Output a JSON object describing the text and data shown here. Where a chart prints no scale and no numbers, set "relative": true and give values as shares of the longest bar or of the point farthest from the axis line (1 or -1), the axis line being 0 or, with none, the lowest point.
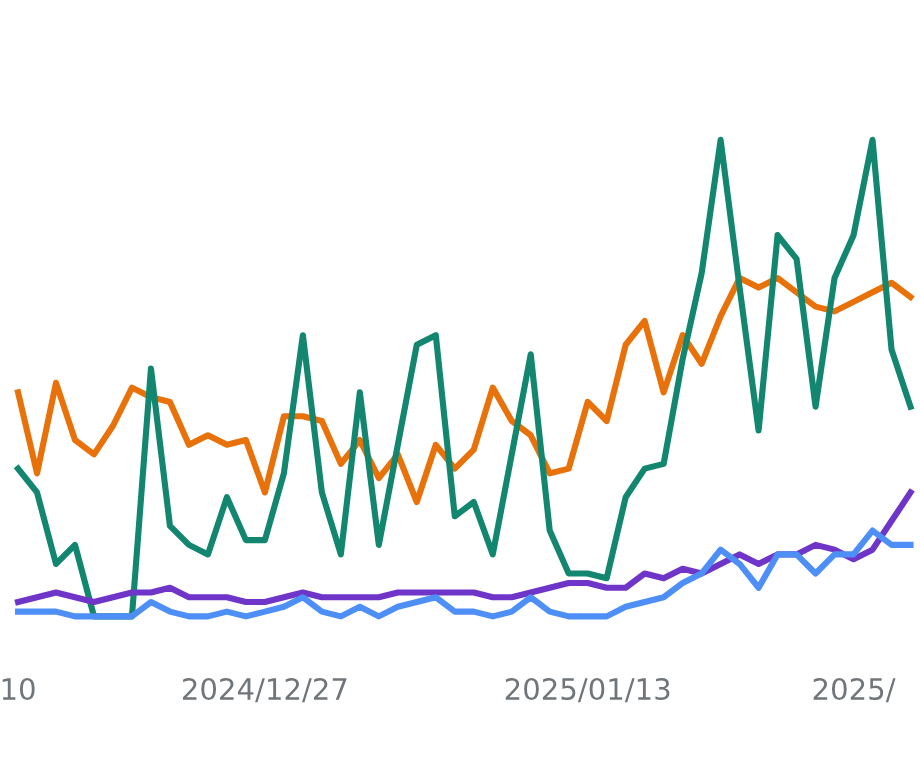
{
  "chart_data": {
    "type": "line",
    "relative": true,
    "grid": false,
    "legend": false,
    "marker": "none",
    "line_style": "solid",
    "categories": [
      "10",
      null,
      null,
      null,
      null,
      null,
      null,
      null,
      null,
      null,
      null,
      null,
      null,
      "2024/12/27",
      null,
      null,
      null,
      null,
      null,
      null,
      null,
      null,
      null,
      null,
      null,
      null,
      null,
      null,
      null,
      null,
      "2025/01/13",
      null,
      null,
      null,
      null,
      null,
      null,
      null,
      null,
      null,
      null,
      null,
      null,
      null,
      "2025/",
      null,
      null,
      null
    ],
    "series": [
      {
        "color": "#e8710a",
        "values": [
          0.47,
          0.3,
          0.49,
          0.37,
          0.34,
          0.4,
          0.48,
          0.46,
          0.45,
          0.36,
          0.38,
          0.36,
          0.37,
          0.26,
          0.42,
          0.42,
          0.41,
          0.32,
          0.37,
          0.29,
          0.34,
          0.24,
          0.36,
          0.31,
          0.35,
          0.48,
          0.41,
          0.38,
          0.3,
          0.31,
          0.45,
          0.41,
          0.57,
          0.62,
          0.47,
          0.59,
          0.53,
          0.63,
          0.71,
          0.69,
          0.71,
          0.68,
          0.65,
          0.64,
          0.66,
          0.68,
          0.7,
          0.67
        ]
      },
      {
        "color": "#12866f",
        "values": [
          0.31,
          0.26,
          0.11,
          0.15,
          0.0,
          0.0,
          0.0,
          0.52,
          0.19,
          0.15,
          0.13,
          0.25,
          0.16,
          0.16,
          0.3,
          0.59,
          0.26,
          0.13,
          0.47,
          0.15,
          0.36,
          0.57,
          0.59,
          0.21,
          0.24,
          0.13,
          0.34,
          0.55,
          0.18,
          0.09,
          0.09,
          0.08,
          0.25,
          0.31,
          0.32,
          0.54,
          0.72,
          1.0,
          0.69,
          0.39,
          0.8,
          0.75,
          0.44,
          0.71,
          0.8,
          1.0,
          0.56,
          0.44
        ]
      },
      {
        "color": "#6f35c8",
        "values": [
          0.03,
          0.04,
          0.05,
          0.04,
          0.03,
          0.04,
          0.05,
          0.05,
          0.06,
          0.04,
          0.04,
          0.04,
          0.03,
          0.03,
          0.04,
          0.05,
          0.04,
          0.04,
          0.04,
          0.04,
          0.05,
          0.05,
          0.05,
          0.05,
          0.05,
          0.04,
          0.04,
          0.05,
          0.06,
          0.07,
          0.07,
          0.06,
          0.06,
          0.09,
          0.08,
          0.1,
          0.09,
          0.11,
          0.13,
          0.11,
          0.13,
          0.13,
          0.15,
          0.14,
          0.12,
          0.14,
          0.2,
          0.26
        ]
      },
      {
        "color": "#4d8ff6",
        "values": [
          0.01,
          0.01,
          0.01,
          0.0,
          0.0,
          0.0,
          0.0,
          0.03,
          0.01,
          0.0,
          0.0,
          0.01,
          0.0,
          0.01,
          0.02,
          0.04,
          0.01,
          0.0,
          0.02,
          0.0,
          0.02,
          0.03,
          0.04,
          0.01,
          0.01,
          0.0,
          0.01,
          0.04,
          0.01,
          0.0,
          0.0,
          0.0,
          0.02,
          0.03,
          0.04,
          0.07,
          0.09,
          0.14,
          0.11,
          0.06,
          0.13,
          0.13,
          0.09,
          0.13,
          0.13,
          0.18,
          0.15,
          0.15
        ]
      }
    ]
  }
}
